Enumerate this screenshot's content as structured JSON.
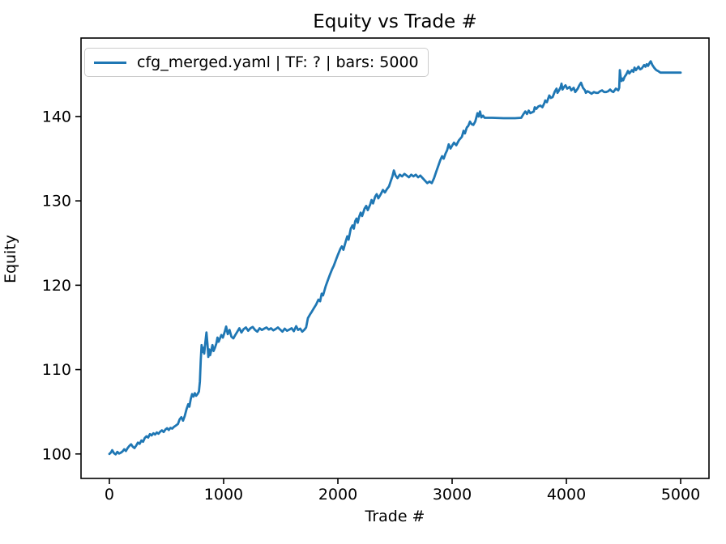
{
  "title": "Equity vs Trade #",
  "legend": {
    "label": "cfg_merged.yaml | TF: ? | bars: 5000",
    "swatch_color": "#1f77b4",
    "border_color": "#cccccc"
  },
  "chart_data": {
    "type": "line",
    "title": "Equity vs Trade #",
    "xlabel": "Trade #",
    "ylabel": "Equity",
    "x_ticks": [
      0,
      1000,
      2000,
      3000,
      4000,
      5000
    ],
    "y_ticks": [
      100,
      110,
      120,
      130,
      140
    ],
    "xlim": [
      -248,
      5248
    ],
    "ylim": [
      97.1,
      149.3
    ],
    "grid": false,
    "legend_position": "upper left",
    "line_color": "#1f77b4",
    "spine_color": "#000000",
    "series": [
      {
        "name": "cfg_merged.yaml | TF: ? | bars: 5000",
        "color": "#1f77b4",
        "points": [
          [
            0,
            100.0
          ],
          [
            15,
            100.2
          ],
          [
            25,
            100.45
          ],
          [
            40,
            100.1
          ],
          [
            55,
            99.95
          ],
          [
            70,
            100.25
          ],
          [
            85,
            100.05
          ],
          [
            100,
            100.15
          ],
          [
            115,
            100.3
          ],
          [
            130,
            100.55
          ],
          [
            145,
            100.35
          ],
          [
            160,
            100.7
          ],
          [
            175,
            100.95
          ],
          [
            190,
            101.15
          ],
          [
            205,
            100.85
          ],
          [
            220,
            100.7
          ],
          [
            235,
            101.0
          ],
          [
            250,
            101.35
          ],
          [
            265,
            101.2
          ],
          [
            280,
            101.6
          ],
          [
            295,
            101.45
          ],
          [
            310,
            101.9
          ],
          [
            325,
            102.1
          ],
          [
            340,
            101.95
          ],
          [
            355,
            102.35
          ],
          [
            370,
            102.2
          ],
          [
            385,
            102.45
          ],
          [
            400,
            102.3
          ],
          [
            415,
            102.55
          ],
          [
            430,
            102.4
          ],
          [
            445,
            102.65
          ],
          [
            460,
            102.8
          ],
          [
            475,
            102.6
          ],
          [
            490,
            102.9
          ],
          [
            505,
            103.05
          ],
          [
            520,
            102.85
          ],
          [
            535,
            103.1
          ],
          [
            550,
            103.0
          ],
          [
            565,
            103.2
          ],
          [
            580,
            103.35
          ],
          [
            600,
            103.55
          ],
          [
            615,
            104.1
          ],
          [
            630,
            104.35
          ],
          [
            645,
            103.95
          ],
          [
            660,
            104.5
          ],
          [
            675,
            105.3
          ],
          [
            690,
            105.9
          ],
          [
            700,
            105.6
          ],
          [
            712,
            106.5
          ],
          [
            724,
            107.1
          ],
          [
            736,
            106.8
          ],
          [
            748,
            107.2
          ],
          [
            760,
            106.9
          ],
          [
            772,
            107.1
          ],
          [
            784,
            107.4
          ],
          [
            792,
            108.6
          ],
          [
            800,
            111.2
          ],
          [
            807,
            112.9
          ],
          [
            814,
            112.1
          ],
          [
            822,
            112.6
          ],
          [
            830,
            111.9
          ],
          [
            840,
            113.2
          ],
          [
            850,
            114.4
          ],
          [
            858,
            113.1
          ],
          [
            866,
            111.5
          ],
          [
            874,
            112.4
          ],
          [
            882,
            111.7
          ],
          [
            892,
            112.3
          ],
          [
            902,
            112.9
          ],
          [
            912,
            112.2
          ],
          [
            924,
            112.6
          ],
          [
            936,
            113.1
          ],
          [
            946,
            113.8
          ],
          [
            956,
            113.3
          ],
          [
            968,
            113.7
          ],
          [
            980,
            114.1
          ],
          [
            994,
            113.8
          ],
          [
            1008,
            114.4
          ],
          [
            1022,
            115.1
          ],
          [
            1036,
            114.2
          ],
          [
            1052,
            114.7
          ],
          [
            1068,
            113.9
          ],
          [
            1085,
            113.7
          ],
          [
            1102,
            114.1
          ],
          [
            1120,
            114.5
          ],
          [
            1138,
            114.9
          ],
          [
            1156,
            114.4
          ],
          [
            1175,
            114.8
          ],
          [
            1195,
            115.0
          ],
          [
            1215,
            114.6
          ],
          [
            1235,
            114.9
          ],
          [
            1255,
            115.05
          ],
          [
            1275,
            114.7
          ],
          [
            1295,
            114.5
          ],
          [
            1315,
            114.9
          ],
          [
            1335,
            114.7
          ],
          [
            1355,
            114.85
          ],
          [
            1375,
            115.0
          ],
          [
            1395,
            114.75
          ],
          [
            1415,
            114.9
          ],
          [
            1435,
            114.65
          ],
          [
            1455,
            114.8
          ],
          [
            1475,
            115.0
          ],
          [
            1495,
            114.75
          ],
          [
            1515,
            114.5
          ],
          [
            1535,
            114.85
          ],
          [
            1555,
            114.6
          ],
          [
            1575,
            114.75
          ],
          [
            1595,
            114.9
          ],
          [
            1615,
            114.55
          ],
          [
            1635,
            115.15
          ],
          [
            1652,
            114.7
          ],
          [
            1670,
            114.85
          ],
          [
            1688,
            114.5
          ],
          [
            1705,
            114.7
          ],
          [
            1722,
            115.0
          ],
          [
            1738,
            116.1
          ],
          [
            1755,
            116.5
          ],
          [
            1773,
            116.9
          ],
          [
            1791,
            117.3
          ],
          [
            1809,
            117.7
          ],
          [
            1830,
            118.3
          ],
          [
            1845,
            118.1
          ],
          [
            1858,
            119.0
          ],
          [
            1870,
            118.8
          ],
          [
            1894,
            119.9
          ],
          [
            1915,
            120.7
          ],
          [
            1929,
            121.2
          ],
          [
            1950,
            121.9
          ],
          [
            1964,
            122.3
          ],
          [
            1986,
            123.1
          ],
          [
            2000,
            123.6
          ],
          [
            2021,
            124.3
          ],
          [
            2035,
            124.6
          ],
          [
            2048,
            124.2
          ],
          [
            2071,
            125.3
          ],
          [
            2082,
            125.8
          ],
          [
            2094,
            125.4
          ],
          [
            2113,
            126.7
          ],
          [
            2128,
            127.1
          ],
          [
            2140,
            126.7
          ],
          [
            2152,
            127.6
          ],
          [
            2163,
            127.9
          ],
          [
            2174,
            127.4
          ],
          [
            2186,
            128.1
          ],
          [
            2199,
            128.6
          ],
          [
            2212,
            128.2
          ],
          [
            2234,
            129.1
          ],
          [
            2248,
            129.4
          ],
          [
            2262,
            128.9
          ],
          [
            2284,
            129.6
          ],
          [
            2294,
            130.1
          ],
          [
            2308,
            129.7
          ],
          [
            2326,
            130.5
          ],
          [
            2340,
            130.8
          ],
          [
            2354,
            130.3
          ],
          [
            2376,
            130.8
          ],
          [
            2394,
            131.3
          ],
          [
            2412,
            131.0
          ],
          [
            2430,
            131.4
          ],
          [
            2447,
            131.7
          ],
          [
            2462,
            132.3
          ],
          [
            2477,
            132.9
          ],
          [
            2490,
            133.6
          ],
          [
            2505,
            133.0
          ],
          [
            2522,
            132.7
          ],
          [
            2542,
            133.1
          ],
          [
            2562,
            132.9
          ],
          [
            2582,
            133.2
          ],
          [
            2602,
            133.0
          ],
          [
            2622,
            132.8
          ],
          [
            2642,
            133.1
          ],
          [
            2662,
            132.9
          ],
          [
            2682,
            133.1
          ],
          [
            2702,
            132.8
          ],
          [
            2722,
            133.0
          ],
          [
            2742,
            132.7
          ],
          [
            2762,
            132.4
          ],
          [
            2782,
            132.1
          ],
          [
            2802,
            132.3
          ],
          [
            2822,
            132.1
          ],
          [
            2842,
            132.7
          ],
          [
            2862,
            133.5
          ],
          [
            2880,
            134.2
          ],
          [
            2896,
            134.8
          ],
          [
            2912,
            135.3
          ],
          [
            2926,
            135.0
          ],
          [
            2942,
            135.6
          ],
          [
            2956,
            136.0
          ],
          [
            2970,
            136.7
          ],
          [
            2986,
            136.2
          ],
          [
            3002,
            136.6
          ],
          [
            3016,
            136.9
          ],
          [
            3036,
            136.6
          ],
          [
            3060,
            137.2
          ],
          [
            3086,
            137.6
          ],
          [
            3100,
            138.3
          ],
          [
            3112,
            138.0
          ],
          [
            3128,
            138.7
          ],
          [
            3142,
            138.9
          ],
          [
            3156,
            139.4
          ],
          [
            3170,
            139.1
          ],
          [
            3186,
            139.0
          ],
          [
            3202,
            139.4
          ],
          [
            3212,
            139.9
          ],
          [
            3222,
            140.4
          ],
          [
            3232,
            140.0
          ],
          [
            3244,
            140.6
          ],
          [
            3256,
            139.9
          ],
          [
            3270,
            140.1
          ],
          [
            3284,
            139.85
          ],
          [
            3350,
            139.85
          ],
          [
            3450,
            139.8
          ],
          [
            3550,
            139.8
          ],
          [
            3605,
            139.85
          ],
          [
            3625,
            140.3
          ],
          [
            3640,
            140.6
          ],
          [
            3655,
            140.3
          ],
          [
            3670,
            140.7
          ],
          [
            3685,
            140.4
          ],
          [
            3700,
            140.5
          ],
          [
            3715,
            140.6
          ],
          [
            3723,
            141.1
          ],
          [
            3737,
            140.9
          ],
          [
            3755,
            141.2
          ],
          [
            3773,
            141.3
          ],
          [
            3790,
            141.1
          ],
          [
            3808,
            141.6
          ],
          [
            3815,
            141.9
          ],
          [
            3830,
            141.7
          ],
          [
            3850,
            142.5
          ],
          [
            3864,
            142.2
          ],
          [
            3879,
            142.3
          ],
          [
            3900,
            143.0
          ],
          [
            3914,
            143.3
          ],
          [
            3922,
            142.8
          ],
          [
            3936,
            143.1
          ],
          [
            3950,
            143.5
          ],
          [
            3957,
            143.9
          ],
          [
            3966,
            143.2
          ],
          [
            3980,
            143.5
          ],
          [
            3992,
            143.7
          ],
          [
            4007,
            143.3
          ],
          [
            4028,
            143.5
          ],
          [
            4043,
            143.1
          ],
          [
            4064,
            143.4
          ],
          [
            4078,
            142.9
          ],
          [
            4099,
            143.3
          ],
          [
            4113,
            143.7
          ],
          [
            4128,
            144.0
          ],
          [
            4145,
            143.4
          ],
          [
            4163,
            143.1
          ],
          [
            4170,
            142.8
          ],
          [
            4185,
            143.0
          ],
          [
            4199,
            142.9
          ],
          [
            4220,
            142.7
          ],
          [
            4241,
            142.9
          ],
          [
            4260,
            142.8
          ],
          [
            4277,
            142.8
          ],
          [
            4295,
            143.0
          ],
          [
            4312,
            143.1
          ],
          [
            4330,
            142.9
          ],
          [
            4348,
            142.9
          ],
          [
            4366,
            143.0
          ],
          [
            4383,
            143.2
          ],
          [
            4398,
            143.0
          ],
          [
            4411,
            142.9
          ],
          [
            4433,
            143.3
          ],
          [
            4454,
            143.1
          ],
          [
            4462,
            143.4
          ],
          [
            4468,
            145.5
          ],
          [
            4476,
            144.6
          ],
          [
            4482,
            144.2
          ],
          [
            4489,
            144.5
          ],
          [
            4498,
            144.3
          ],
          [
            4510,
            144.7
          ],
          [
            4525,
            145.0
          ],
          [
            4539,
            145.4
          ],
          [
            4550,
            145.1
          ],
          [
            4562,
            145.3
          ],
          [
            4574,
            145.5
          ],
          [
            4586,
            145.3
          ],
          [
            4596,
            145.8
          ],
          [
            4608,
            145.5
          ],
          [
            4620,
            145.7
          ],
          [
            4631,
            145.9
          ],
          [
            4645,
            145.6
          ],
          [
            4660,
            145.7
          ],
          [
            4670,
            145.9
          ],
          [
            4681,
            146.1
          ],
          [
            4692,
            145.9
          ],
          [
            4703,
            146.2
          ],
          [
            4715,
            146.0
          ],
          [
            4730,
            146.4
          ],
          [
            4738,
            146.55
          ],
          [
            4752,
            146.1
          ],
          [
            4762,
            145.9
          ],
          [
            4773,
            145.7
          ],
          [
            4786,
            145.5
          ],
          [
            4801,
            145.4
          ],
          [
            4823,
            145.2
          ],
          [
            4880,
            145.2
          ],
          [
            4940,
            145.2
          ],
          [
            5000,
            145.2
          ]
        ]
      }
    ]
  }
}
